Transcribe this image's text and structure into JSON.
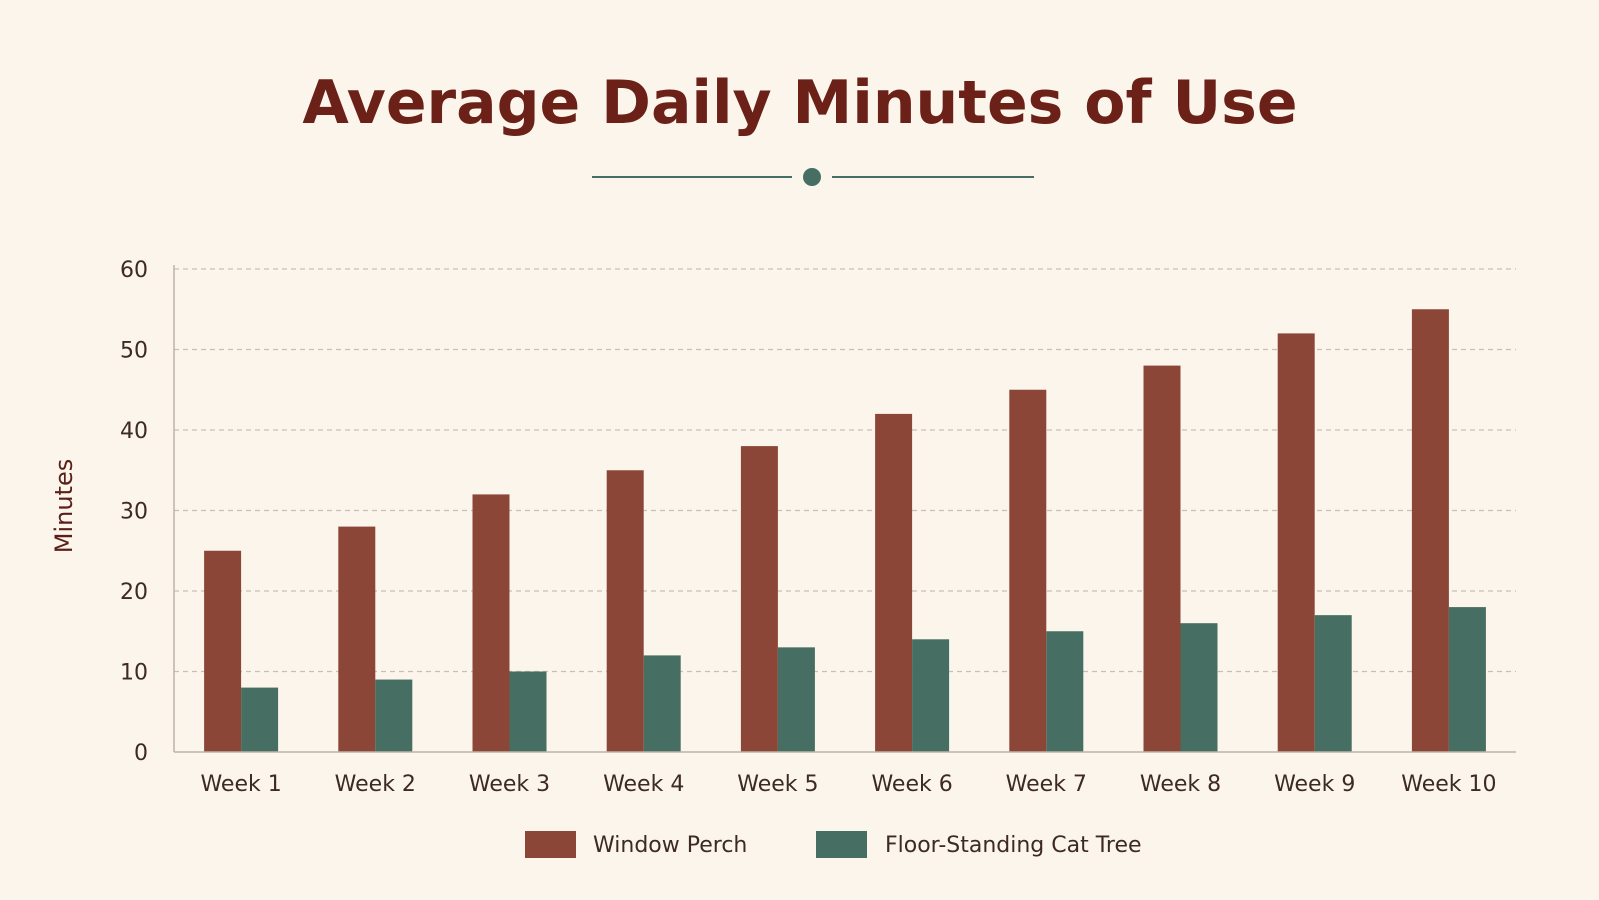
{
  "chart_data": {
    "type": "bar",
    "title": "Average Daily Minutes of Use",
    "xlabel": "",
    "ylabel": "Minutes",
    "ylim": [
      0,
      60
    ],
    "yticks": [
      0,
      10,
      20,
      30,
      40,
      50,
      60
    ],
    "grid": true,
    "legend_position": "bottom-center",
    "categories": [
      "Week 1",
      "Week 2",
      "Week 3",
      "Week 4",
      "Week 5",
      "Week 6",
      "Week 7",
      "Week 8",
      "Week 9",
      "Week 10"
    ],
    "series": [
      {
        "name": "Window Perch",
        "color": "#8c4637",
        "values": [
          25,
          28,
          32,
          35,
          38,
          42,
          45,
          48,
          52,
          55
        ]
      },
      {
        "name": "Floor-Standing Cat Tree",
        "color": "#466e62",
        "values": [
          8,
          9,
          10,
          12,
          13,
          14,
          15,
          16,
          17,
          18
        ]
      }
    ],
    "colors": {
      "title": "#6b2118",
      "ornament": "#466e62",
      "background": "#fbf5ec"
    }
  }
}
